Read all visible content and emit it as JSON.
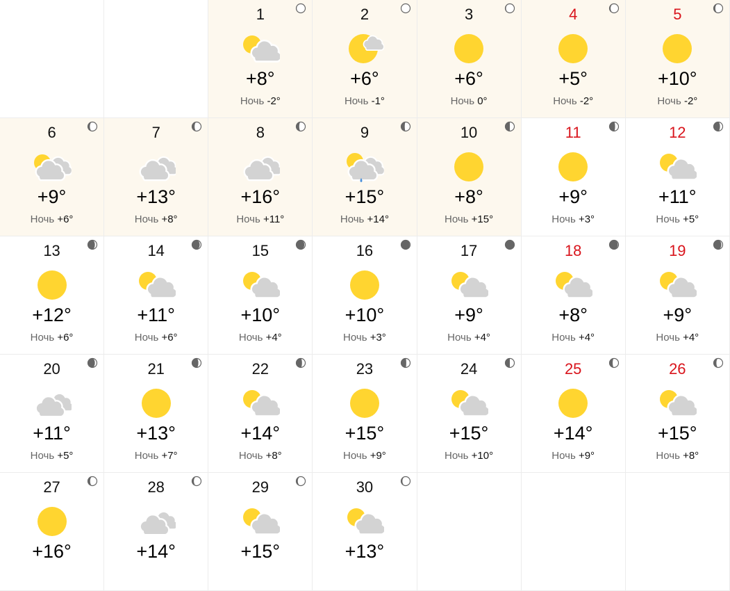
{
  "night_label": "Ночь",
  "colors": {
    "highlight_bg": "#fdf8ee",
    "weekend": "#d9141c",
    "sun": "#ffd530",
    "cloud": "#d3d3d3",
    "rain": "#4a90d9",
    "moon_dark": "#666666"
  },
  "leading_empty_cells": 2,
  "trailing_empty_cells": 3,
  "days": [
    {
      "date": "1",
      "day": "+8°",
      "night": "-2°",
      "icon": "partly-cloudy",
      "moon_dark": 0.05,
      "highlight": true,
      "weekend": false
    },
    {
      "date": "2",
      "day": "+6°",
      "night": "-1°",
      "icon": "sun-small-cloud",
      "moon_dark": 0,
      "highlight": true,
      "weekend": false
    },
    {
      "date": "3",
      "day": "+6°",
      "night": "0°",
      "icon": "sun",
      "moon_dark": 0.08,
      "highlight": true,
      "weekend": false
    },
    {
      "date": "4",
      "day": "+5°",
      "night": "-2°",
      "icon": "sun",
      "moon_dark": 0.12,
      "highlight": true,
      "weekend": true
    },
    {
      "date": "5",
      "day": "+10°",
      "night": "-2°",
      "icon": "sun",
      "moon_dark": 0.18,
      "highlight": true,
      "weekend": true
    },
    {
      "date": "6",
      "day": "+9°",
      "night": "+6°",
      "icon": "partly-cloudy-heavy",
      "moon_dark": 0.22,
      "highlight": true,
      "weekend": false
    },
    {
      "date": "7",
      "day": "+13°",
      "night": "+8°",
      "icon": "cloudy",
      "moon_dark": 0.28,
      "highlight": true,
      "weekend": false
    },
    {
      "date": "8",
      "day": "+16°",
      "night": "+11°",
      "icon": "cloudy",
      "moon_dark": 0.33,
      "highlight": true,
      "weekend": false
    },
    {
      "date": "9",
      "day": "+15°",
      "night": "+14°",
      "icon": "partly-cloudy-rain",
      "moon_dark": 0.4,
      "highlight": true,
      "weekend": false
    },
    {
      "date": "10",
      "day": "+8°",
      "night": "+15°",
      "icon": "sun",
      "moon_dark": 0.5,
      "highlight": true,
      "weekend": false
    },
    {
      "date": "11",
      "day": "+9°",
      "night": "+3°",
      "icon": "sun",
      "moon_dark": 0.62,
      "highlight": false,
      "weekend": true
    },
    {
      "date": "12",
      "day": "+11°",
      "night": "+5°",
      "icon": "partly-cloudy",
      "moon_dark": 0.7,
      "highlight": false,
      "weekend": true
    },
    {
      "date": "13",
      "day": "+12°",
      "night": "+6°",
      "icon": "sun",
      "moon_dark": 0.78,
      "highlight": false,
      "weekend": false
    },
    {
      "date": "14",
      "day": "+11°",
      "night": "+6°",
      "icon": "partly-cloudy",
      "moon_dark": 0.85,
      "highlight": false,
      "weekend": false
    },
    {
      "date": "15",
      "day": "+10°",
      "night": "+4°",
      "icon": "partly-cloudy",
      "moon_dark": 0.9,
      "highlight": false,
      "weekend": false
    },
    {
      "date": "16",
      "day": "+10°",
      "night": "+3°",
      "icon": "sun",
      "moon_dark": 0.95,
      "highlight": false,
      "weekend": false
    },
    {
      "date": "17",
      "day": "+9°",
      "night": "+4°",
      "icon": "partly-cloudy",
      "moon_dark": 1,
      "highlight": false,
      "weekend": false
    },
    {
      "date": "18",
      "day": "+8°",
      "night": "+4°",
      "icon": "partly-cloudy",
      "moon_dark": 0.92,
      "highlight": false,
      "weekend": true
    },
    {
      "date": "19",
      "day": "+9°",
      "night": "+4°",
      "icon": "partly-cloudy",
      "moon_dark": 0.85,
      "highlight": false,
      "weekend": true
    },
    {
      "date": "20",
      "day": "+11°",
      "night": "+5°",
      "icon": "cloudy",
      "moon_dark": 0.78,
      "highlight": false,
      "weekend": false
    },
    {
      "date": "21",
      "day": "+13°",
      "night": "+7°",
      "icon": "sun",
      "moon_dark": 0.7,
      "highlight": false,
      "weekend": false
    },
    {
      "date": "22",
      "day": "+14°",
      "night": "+8°",
      "icon": "partly-cloudy",
      "moon_dark": 0.64,
      "highlight": false,
      "weekend": false
    },
    {
      "date": "23",
      "day": "+15°",
      "night": "+9°",
      "icon": "sun",
      "moon_dark": 0.57,
      "highlight": false,
      "weekend": false
    },
    {
      "date": "24",
      "day": "+15°",
      "night": "+10°",
      "icon": "partly-cloudy",
      "moon_dark": 0.5,
      "highlight": false,
      "weekend": false
    },
    {
      "date": "25",
      "day": "+14°",
      "night": "+9°",
      "icon": "sun",
      "moon_dark": 0.35,
      "highlight": false,
      "weekend": true
    },
    {
      "date": "26",
      "day": "+15°",
      "night": "+8°",
      "icon": "partly-cloudy",
      "moon_dark": 0.3,
      "highlight": false,
      "weekend": true
    },
    {
      "date": "27",
      "day": "+16°",
      "night": "",
      "icon": "sun",
      "moon_dark": 0.25,
      "highlight": false,
      "weekend": false
    },
    {
      "date": "28",
      "day": "+14°",
      "night": "",
      "icon": "cloudy",
      "moon_dark": 0.2,
      "highlight": false,
      "weekend": false
    },
    {
      "date": "29",
      "day": "+15°",
      "night": "",
      "icon": "partly-cloudy",
      "moon_dark": 0.17,
      "highlight": false,
      "weekend": false
    },
    {
      "date": "30",
      "day": "+13°",
      "night": "",
      "icon": "partly-cloudy",
      "moon_dark": 0.14,
      "highlight": false,
      "weekend": false
    }
  ]
}
